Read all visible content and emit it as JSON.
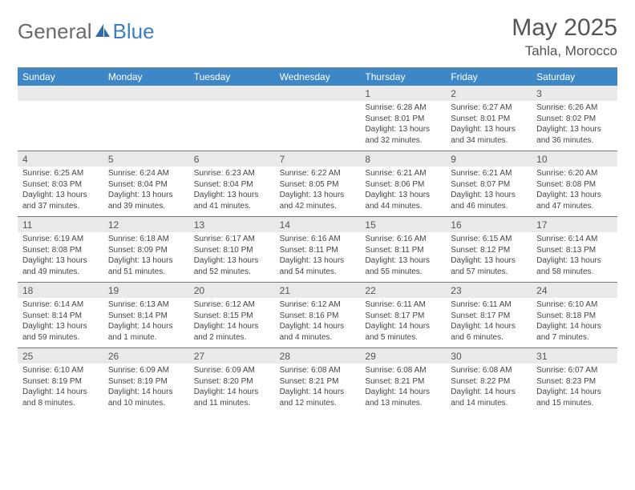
{
  "brand": {
    "part1": "General",
    "part2": "Blue"
  },
  "title": {
    "month": "May 2025",
    "location": "Tahla, Morocco"
  },
  "colors": {
    "header_bg": "#3d87c7",
    "header_fg": "#ffffff",
    "numrow_bg": "#e9e9e9",
    "text": "#444444"
  },
  "dayNames": [
    "Sunday",
    "Monday",
    "Tuesday",
    "Wednesday",
    "Thursday",
    "Friday",
    "Saturday"
  ],
  "weeks": [
    {
      "nums": [
        "",
        "",
        "",
        "",
        "1",
        "2",
        "3"
      ],
      "cells": [
        {},
        {},
        {},
        {},
        {
          "sunrise": "Sunrise: 6:28 AM",
          "sunset": "Sunset: 8:01 PM",
          "day1": "Daylight: 13 hours",
          "day2": "and 32 minutes."
        },
        {
          "sunrise": "Sunrise: 6:27 AM",
          "sunset": "Sunset: 8:01 PM",
          "day1": "Daylight: 13 hours",
          "day2": "and 34 minutes."
        },
        {
          "sunrise": "Sunrise: 6:26 AM",
          "sunset": "Sunset: 8:02 PM",
          "day1": "Daylight: 13 hours",
          "day2": "and 36 minutes."
        }
      ]
    },
    {
      "nums": [
        "4",
        "5",
        "6",
        "7",
        "8",
        "9",
        "10"
      ],
      "cells": [
        {
          "sunrise": "Sunrise: 6:25 AM",
          "sunset": "Sunset: 8:03 PM",
          "day1": "Daylight: 13 hours",
          "day2": "and 37 minutes."
        },
        {
          "sunrise": "Sunrise: 6:24 AM",
          "sunset": "Sunset: 8:04 PM",
          "day1": "Daylight: 13 hours",
          "day2": "and 39 minutes."
        },
        {
          "sunrise": "Sunrise: 6:23 AM",
          "sunset": "Sunset: 8:04 PM",
          "day1": "Daylight: 13 hours",
          "day2": "and 41 minutes."
        },
        {
          "sunrise": "Sunrise: 6:22 AM",
          "sunset": "Sunset: 8:05 PM",
          "day1": "Daylight: 13 hours",
          "day2": "and 42 minutes."
        },
        {
          "sunrise": "Sunrise: 6:21 AM",
          "sunset": "Sunset: 8:06 PM",
          "day1": "Daylight: 13 hours",
          "day2": "and 44 minutes."
        },
        {
          "sunrise": "Sunrise: 6:21 AM",
          "sunset": "Sunset: 8:07 PM",
          "day1": "Daylight: 13 hours",
          "day2": "and 46 minutes."
        },
        {
          "sunrise": "Sunrise: 6:20 AM",
          "sunset": "Sunset: 8:08 PM",
          "day1": "Daylight: 13 hours",
          "day2": "and 47 minutes."
        }
      ]
    },
    {
      "nums": [
        "11",
        "12",
        "13",
        "14",
        "15",
        "16",
        "17"
      ],
      "cells": [
        {
          "sunrise": "Sunrise: 6:19 AM",
          "sunset": "Sunset: 8:08 PM",
          "day1": "Daylight: 13 hours",
          "day2": "and 49 minutes."
        },
        {
          "sunrise": "Sunrise: 6:18 AM",
          "sunset": "Sunset: 8:09 PM",
          "day1": "Daylight: 13 hours",
          "day2": "and 51 minutes."
        },
        {
          "sunrise": "Sunrise: 6:17 AM",
          "sunset": "Sunset: 8:10 PM",
          "day1": "Daylight: 13 hours",
          "day2": "and 52 minutes."
        },
        {
          "sunrise": "Sunrise: 6:16 AM",
          "sunset": "Sunset: 8:11 PM",
          "day1": "Daylight: 13 hours",
          "day2": "and 54 minutes."
        },
        {
          "sunrise": "Sunrise: 6:16 AM",
          "sunset": "Sunset: 8:11 PM",
          "day1": "Daylight: 13 hours",
          "day2": "and 55 minutes."
        },
        {
          "sunrise": "Sunrise: 6:15 AM",
          "sunset": "Sunset: 8:12 PM",
          "day1": "Daylight: 13 hours",
          "day2": "and 57 minutes."
        },
        {
          "sunrise": "Sunrise: 6:14 AM",
          "sunset": "Sunset: 8:13 PM",
          "day1": "Daylight: 13 hours",
          "day2": "and 58 minutes."
        }
      ]
    },
    {
      "nums": [
        "18",
        "19",
        "20",
        "21",
        "22",
        "23",
        "24"
      ],
      "cells": [
        {
          "sunrise": "Sunrise: 6:14 AM",
          "sunset": "Sunset: 8:14 PM",
          "day1": "Daylight: 13 hours",
          "day2": "and 59 minutes."
        },
        {
          "sunrise": "Sunrise: 6:13 AM",
          "sunset": "Sunset: 8:14 PM",
          "day1": "Daylight: 14 hours",
          "day2": "and 1 minute."
        },
        {
          "sunrise": "Sunrise: 6:12 AM",
          "sunset": "Sunset: 8:15 PM",
          "day1": "Daylight: 14 hours",
          "day2": "and 2 minutes."
        },
        {
          "sunrise": "Sunrise: 6:12 AM",
          "sunset": "Sunset: 8:16 PM",
          "day1": "Daylight: 14 hours",
          "day2": "and 4 minutes."
        },
        {
          "sunrise": "Sunrise: 6:11 AM",
          "sunset": "Sunset: 8:17 PM",
          "day1": "Daylight: 14 hours",
          "day2": "and 5 minutes."
        },
        {
          "sunrise": "Sunrise: 6:11 AM",
          "sunset": "Sunset: 8:17 PM",
          "day1": "Daylight: 14 hours",
          "day2": "and 6 minutes."
        },
        {
          "sunrise": "Sunrise: 6:10 AM",
          "sunset": "Sunset: 8:18 PM",
          "day1": "Daylight: 14 hours",
          "day2": "and 7 minutes."
        }
      ]
    },
    {
      "nums": [
        "25",
        "26",
        "27",
        "28",
        "29",
        "30",
        "31"
      ],
      "cells": [
        {
          "sunrise": "Sunrise: 6:10 AM",
          "sunset": "Sunset: 8:19 PM",
          "day1": "Daylight: 14 hours",
          "day2": "and 8 minutes."
        },
        {
          "sunrise": "Sunrise: 6:09 AM",
          "sunset": "Sunset: 8:19 PM",
          "day1": "Daylight: 14 hours",
          "day2": "and 10 minutes."
        },
        {
          "sunrise": "Sunrise: 6:09 AM",
          "sunset": "Sunset: 8:20 PM",
          "day1": "Daylight: 14 hours",
          "day2": "and 11 minutes."
        },
        {
          "sunrise": "Sunrise: 6:08 AM",
          "sunset": "Sunset: 8:21 PM",
          "day1": "Daylight: 14 hours",
          "day2": "and 12 minutes."
        },
        {
          "sunrise": "Sunrise: 6:08 AM",
          "sunset": "Sunset: 8:21 PM",
          "day1": "Daylight: 14 hours",
          "day2": "and 13 minutes."
        },
        {
          "sunrise": "Sunrise: 6:08 AM",
          "sunset": "Sunset: 8:22 PM",
          "day1": "Daylight: 14 hours",
          "day2": "and 14 minutes."
        },
        {
          "sunrise": "Sunrise: 6:07 AM",
          "sunset": "Sunset: 8:23 PM",
          "day1": "Daylight: 14 hours",
          "day2": "and 15 minutes."
        }
      ]
    }
  ]
}
